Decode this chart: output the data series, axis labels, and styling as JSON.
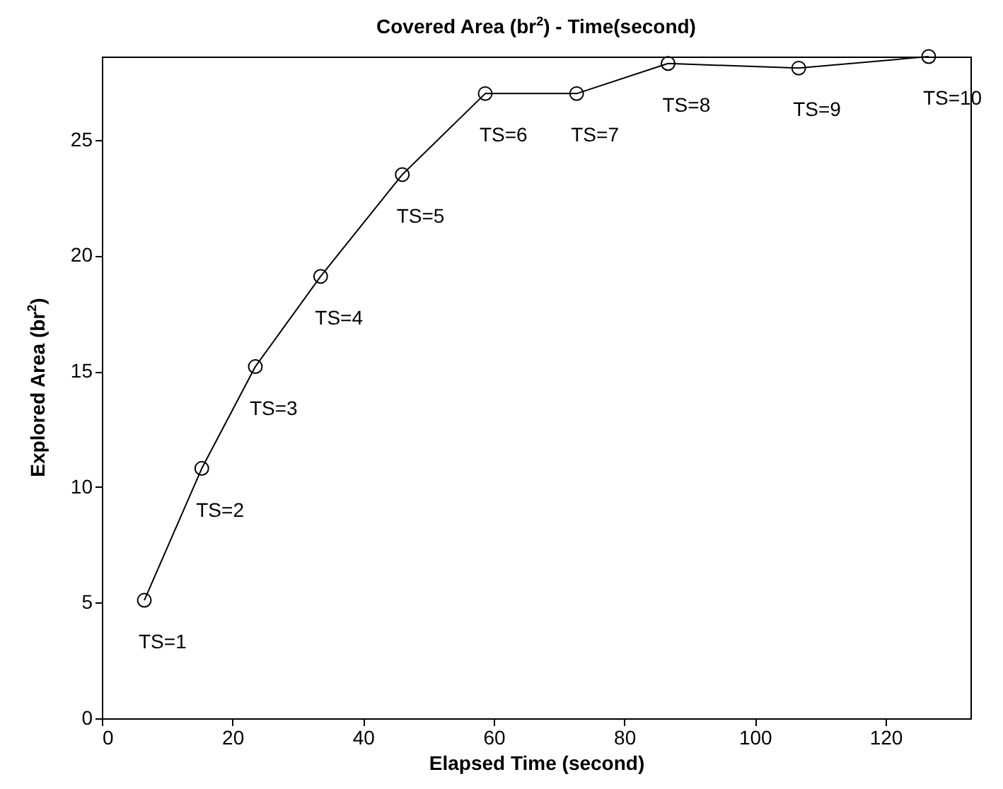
{
  "chart_data": {
    "type": "line",
    "title": "Covered Area (br$^{2}$) - Time(second)",
    "xlabel": "Elapsed Time (second)",
    "ylabel": "Explored Area (br$^{2}$)",
    "x": [
      6.5,
      15.3,
      23.5,
      33.5,
      46.0,
      58.7,
      72.7,
      86.7,
      106.7,
      126.6
    ],
    "series": [
      {
        "color": "#000000",
        "values": [
          5.1,
          10.8,
          15.2,
          19.1,
          23.5,
          27.0,
          27.0,
          28.3,
          28.1,
          28.6
        ]
      }
    ],
    "xlim": [
      0,
      133
    ],
    "ylim": [
      0,
      28.6
    ],
    "xticks": [
      0,
      20,
      40,
      60,
      80,
      100,
      120
    ],
    "yticks": [
      0,
      5,
      10,
      15,
      20,
      25
    ],
    "marker": "circle",
    "line_style": "solid",
    "annotations": [
      {
        "text": "TS=1",
        "x": 6.5,
        "y": 5.1
      },
      {
        "text": "TS=2",
        "x": 15.3,
        "y": 10.8
      },
      {
        "text": "TS=3",
        "x": 23.5,
        "y": 15.2
      },
      {
        "text": "TS=4",
        "x": 33.5,
        "y": 19.1
      },
      {
        "text": "TS=5",
        "x": 46.0,
        "y": 23.5
      },
      {
        "text": "TS=6",
        "x": 58.7,
        "y": 27.0
      },
      {
        "text": "TS=7",
        "x": 72.7,
        "y": 27.0
      },
      {
        "text": "TS=8",
        "x": 86.7,
        "y": 28.3
      },
      {
        "text": "TS=9",
        "x": 106.7,
        "y": 28.1
      },
      {
        "text": "TS=10",
        "x": 126.6,
        "y": 28.6
      }
    ]
  }
}
